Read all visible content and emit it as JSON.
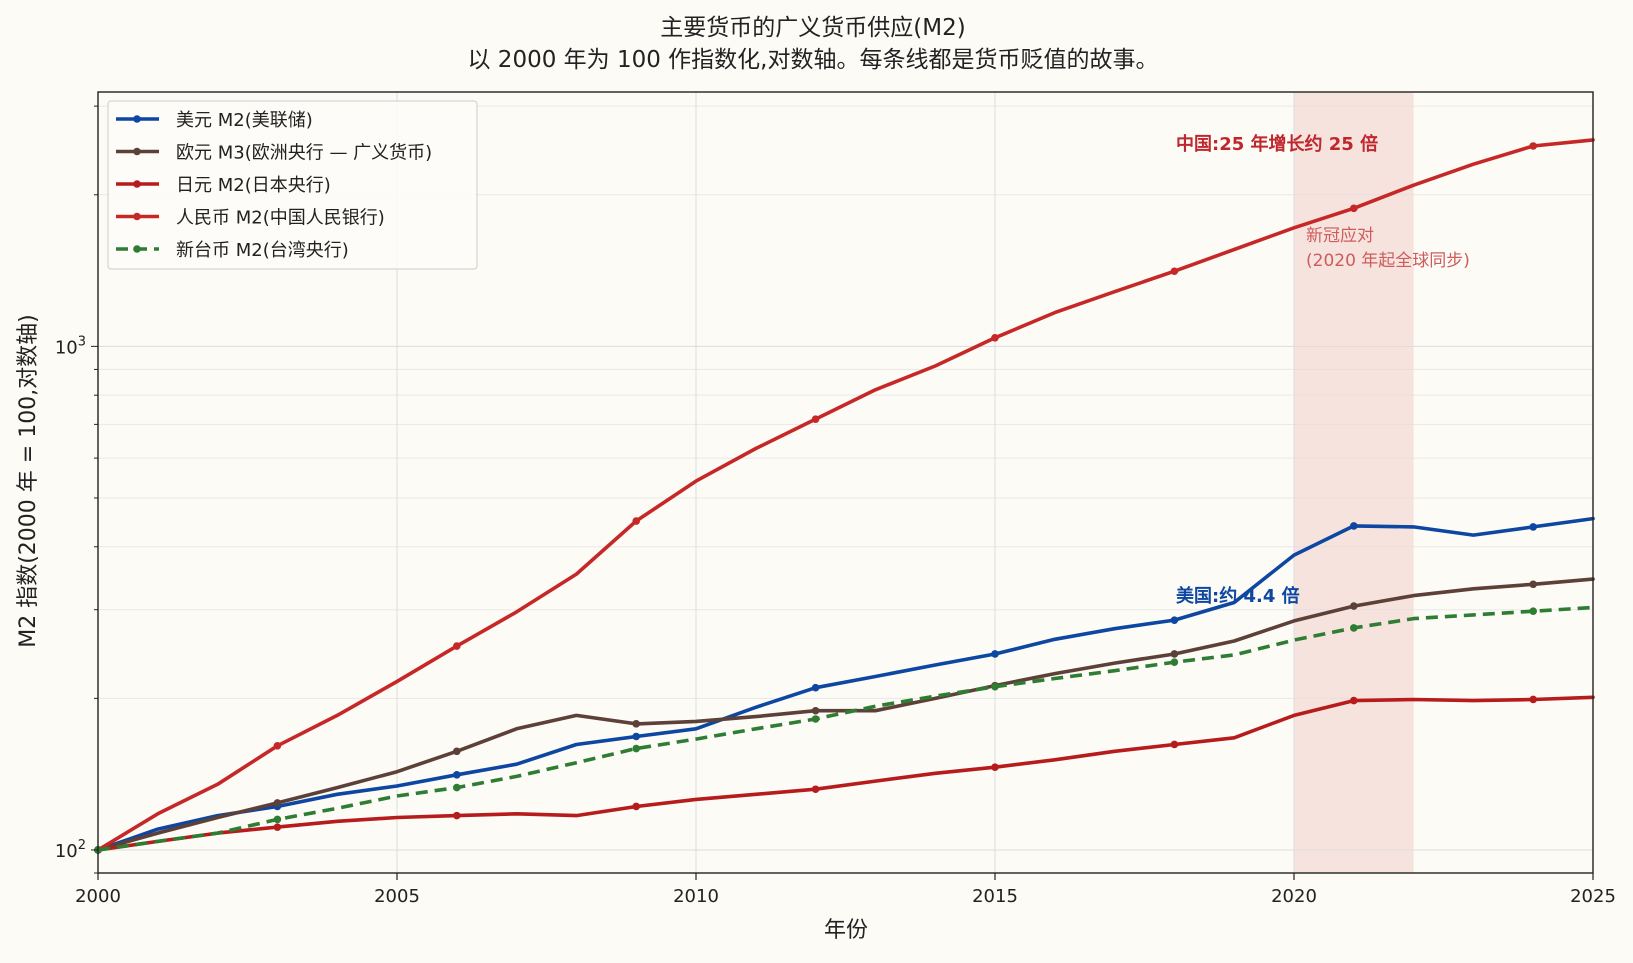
{
  "colors": {
    "background": "#fcfbf6",
    "usd": "#0d47a1",
    "eur": "#5d4037",
    "jpy": "#b71c1c",
    "cny": "#c62828",
    "twd": "#2e7d32",
    "covid_band": "#f2d0c8",
    "grid": "#dddddd"
  },
  "chart_data": {
    "type": "line",
    "title": "主要货币的广义货币供应(M2)",
    "subtitle": "以 2000 年为 100 作指数化,对数轴。每条线都是货币贬值的故事。",
    "xlabel": "年份",
    "ylabel": "M2 指数(2000 年 = 100,对数轴)",
    "xlim": [
      2000,
      2025
    ],
    "ylim": [
      90,
      3200
    ],
    "yscale": "log",
    "grid": true,
    "legend_position": "upper-left",
    "x_ticks": [
      "2000",
      "2005",
      "2010",
      "2015",
      "2020",
      "2025"
    ],
    "y_ticks": [
      {
        "value": 100,
        "base": "10",
        "exp": "2"
      },
      {
        "value": 1000,
        "base": "10",
        "exp": "3"
      }
    ],
    "series": [
      {
        "name": "美元 M2(美联储)",
        "color_key": "usd",
        "dashed": false,
        "x": [
          2000,
          2001,
          2002,
          2003,
          2004,
          2005,
          2006,
          2007,
          2008,
          2009,
          2010,
          2011,
          2012,
          2013,
          2014,
          2015,
          2016,
          2017,
          2018,
          2019,
          2020,
          2021,
          2022,
          2023,
          2024,
          2025
        ],
        "values": [
          100,
          110,
          117,
          122,
          129,
          134,
          141,
          148,
          162,
          168,
          174,
          192,
          210,
          221,
          233,
          245,
          262,
          275,
          286,
          310,
          385,
          440,
          438,
          422,
          438,
          455
        ],
        "markers": [
          2000,
          2003,
          2006,
          2009,
          2012,
          2015,
          2018,
          2021,
          2024
        ]
      },
      {
        "name": "欧元 M3(欧洲央行 — 广义货币)",
        "color_key": "eur",
        "dashed": false,
        "x": [
          2000,
          2001,
          2002,
          2003,
          2004,
          2005,
          2006,
          2007,
          2008,
          2009,
          2010,
          2011,
          2012,
          2013,
          2014,
          2015,
          2016,
          2017,
          2018,
          2019,
          2020,
          2021,
          2022,
          2023,
          2024,
          2025
        ],
        "values": [
          100,
          108,
          116,
          124,
          133,
          143,
          157,
          174,
          185,
          178,
          180,
          184,
          189,
          189,
          200,
          212,
          224,
          235,
          245,
          260,
          285,
          305,
          320,
          330,
          337,
          345
        ],
        "markers": [
          2000,
          2003,
          2006,
          2009,
          2012,
          2015,
          2018,
          2021,
          2024
        ]
      },
      {
        "name": "日元 M2(日本央行)",
        "color_key": "jpy",
        "dashed": false,
        "x": [
          2000,
          2001,
          2002,
          2003,
          2004,
          2005,
          2006,
          2007,
          2008,
          2009,
          2010,
          2011,
          2012,
          2013,
          2014,
          2015,
          2016,
          2017,
          2018,
          2019,
          2020,
          2021,
          2022,
          2023,
          2024,
          2025
        ],
        "values": [
          100,
          104,
          108,
          111,
          114,
          116,
          117,
          118,
          117,
          122,
          126,
          129,
          132,
          137,
          142,
          146,
          151,
          157,
          162,
          167,
          185,
          198,
          199,
          198,
          199,
          201
        ],
        "markers": [
          2000,
          2003,
          2006,
          2009,
          2012,
          2015,
          2018,
          2021,
          2024
        ]
      },
      {
        "name": "人民币 M2(中国人民银行)",
        "color_key": "cny",
        "dashed": false,
        "x": [
          2000,
          2001,
          2002,
          2003,
          2004,
          2005,
          2006,
          2007,
          2008,
          2009,
          2010,
          2011,
          2012,
          2013,
          2014,
          2015,
          2016,
          2017,
          2018,
          2019,
          2020,
          2021,
          2022,
          2023,
          2024,
          2025
        ],
        "values": [
          100,
          118,
          135,
          161,
          185,
          216,
          254,
          297,
          353,
          450,
          540,
          627,
          717,
          820,
          914,
          1040,
          1167,
          1284,
          1410,
          1557,
          1720,
          1880,
          2090,
          2300,
          2500,
          2570
        ],
        "markers": [
          2000,
          2003,
          2006,
          2009,
          2012,
          2015,
          2018,
          2021,
          2024
        ]
      },
      {
        "name": "新台币 M2(台湾央行)",
        "color_key": "twd",
        "dashed": true,
        "x": [
          2000,
          2001,
          2002,
          2003,
          2004,
          2005,
          2006,
          2007,
          2008,
          2009,
          2010,
          2011,
          2012,
          2013,
          2014,
          2015,
          2016,
          2017,
          2018,
          2019,
          2020,
          2021,
          2022,
          2023,
          2024,
          2025
        ],
        "values": [
          100,
          104,
          108,
          115,
          121,
          128,
          133,
          140,
          149,
          159,
          166,
          174,
          182,
          193,
          202,
          211,
          219,
          227,
          236,
          244,
          261,
          276,
          288,
          293,
          298,
          303
        ],
        "markers": [
          2000,
          2003,
          2006,
          2009,
          2012,
          2015,
          2018,
          2021,
          2024
        ]
      }
    ],
    "bands": [
      {
        "x0": 2020,
        "x1": 2022,
        "label_line1": "新冠应对",
        "label_line2": "(2020 年起全球同步)"
      }
    ],
    "annotations": [
      {
        "key": "cn",
        "text": "中国:25 年增长约 25 倍",
        "x": 2016.5,
        "y": 2760
      },
      {
        "key": "us",
        "text": "美国:约 4.4 倍",
        "x": 2016.5,
        "y": 292
      }
    ]
  }
}
